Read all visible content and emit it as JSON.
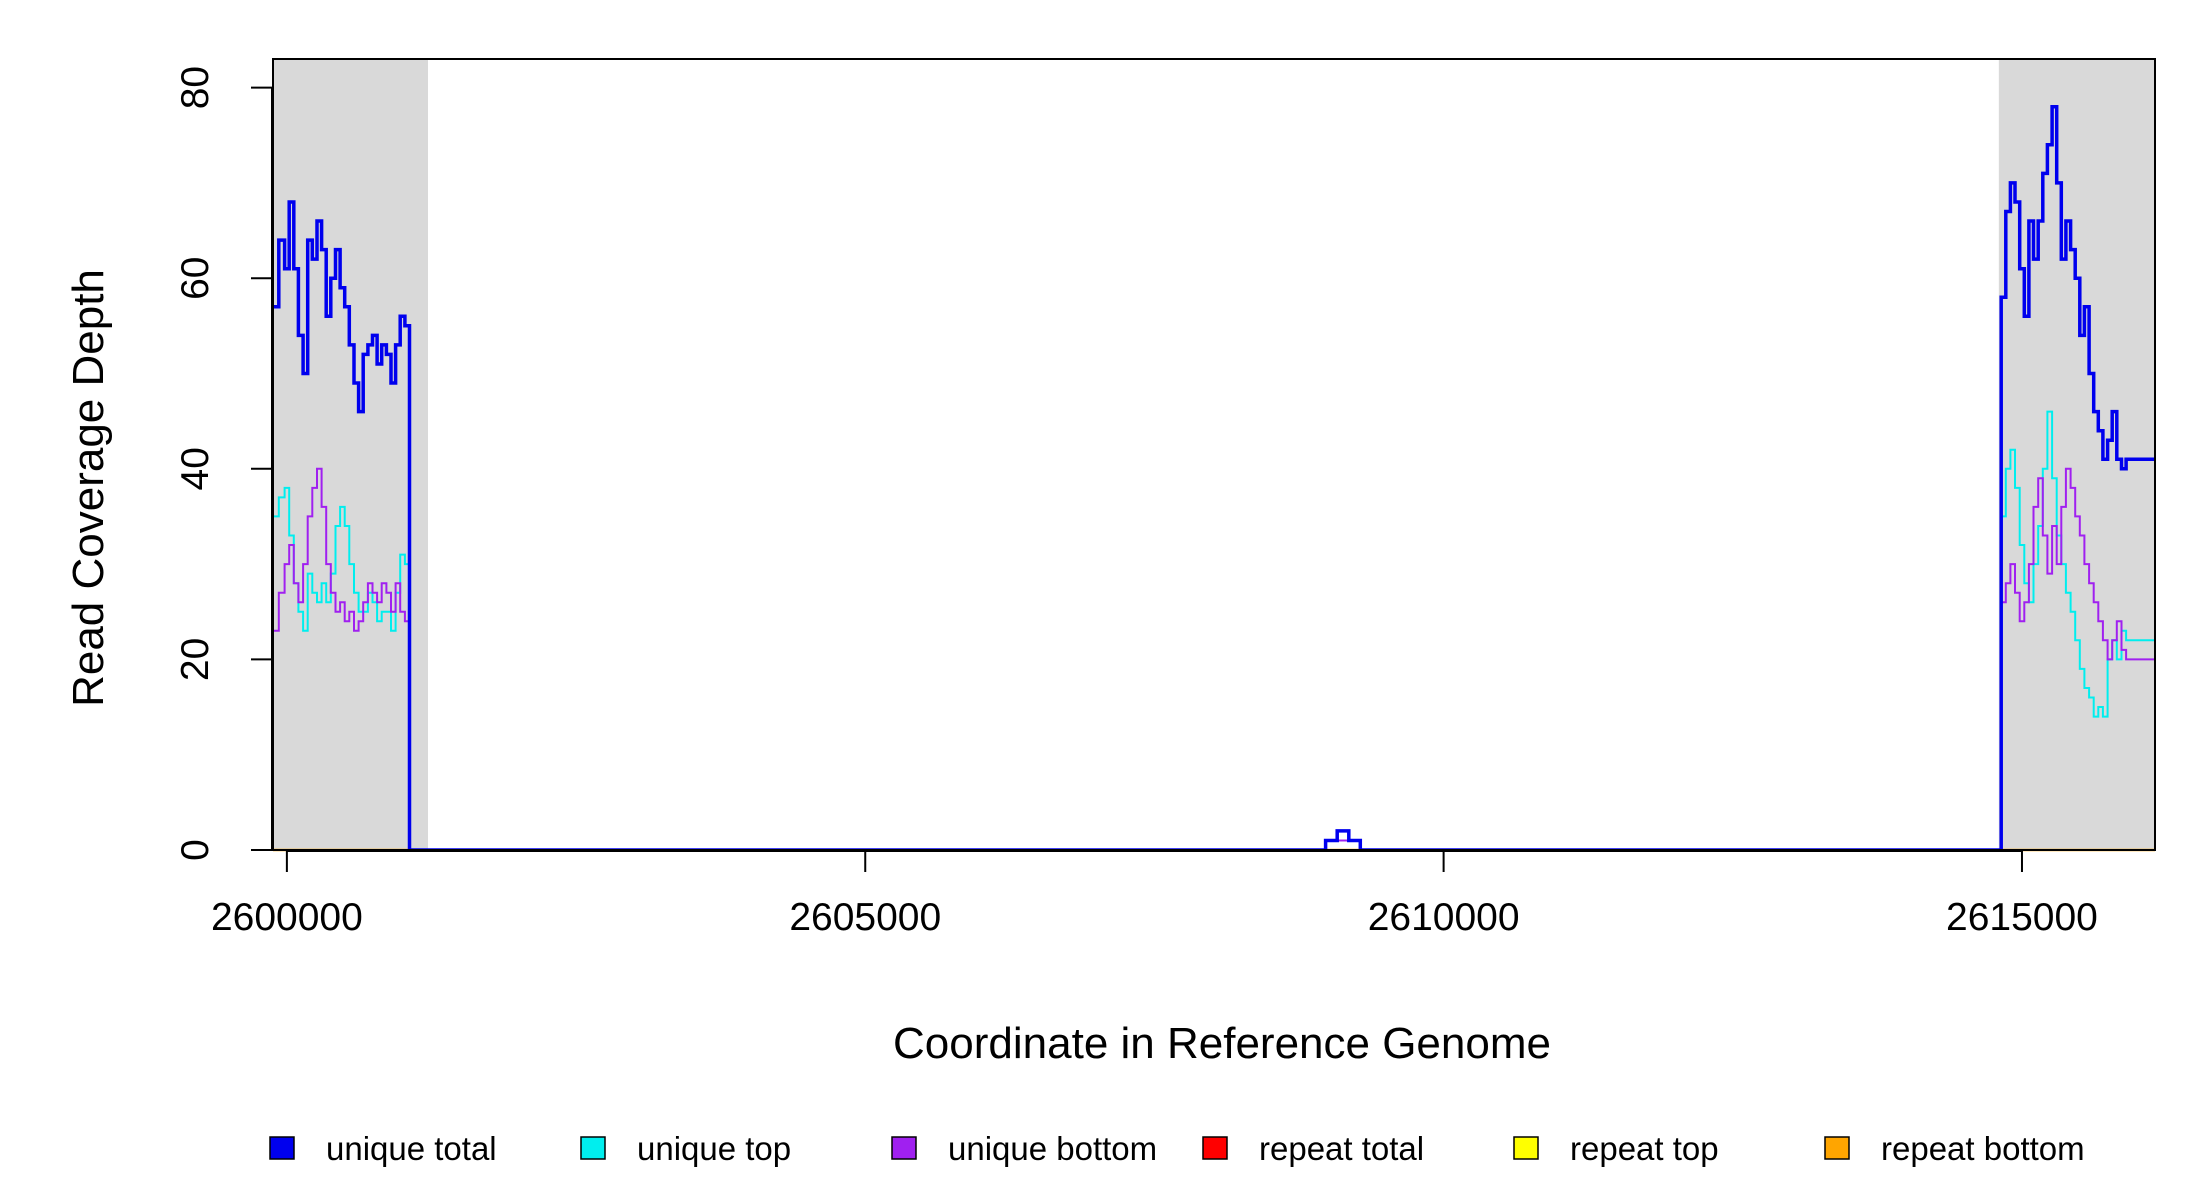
{
  "chart_data": {
    "type": "line",
    "xlabel": "Coordinate in Reference Genome",
    "ylabel": "Read Coverage Depth",
    "xlim": [
      2599880,
      2616150
    ],
    "ylim": [
      0,
      83
    ],
    "x_ticks": [
      2600000,
      2605000,
      2610000,
      2615000
    ],
    "x_tick_labels": [
      "2600000",
      "2605000",
      "2610000",
      "2615000"
    ],
    "y_ticks": [
      0,
      20,
      40,
      60,
      80
    ],
    "y_tick_labels": [
      "0",
      "20",
      "40",
      "60",
      "80"
    ],
    "shaded_regions": [
      [
        2599880,
        2601220
      ],
      [
        2614800,
        2616150
      ]
    ],
    "legend_position": "bottom",
    "series": [
      {
        "name": "unique total",
        "color": "#0000ee",
        "x": [
          2599880,
          2599930,
          2599980,
          2600020,
          2600060,
          2600100,
          2600140,
          2600180,
          2600220,
          2600260,
          2600300,
          2600340,
          2600380,
          2600420,
          2600460,
          2600500,
          2600540,
          2600580,
          2600620,
          2600660,
          2600700,
          2600740,
          2600780,
          2600820,
          2600860,
          2600900,
          2600940,
          2600980,
          2601020,
          2601060,
          2601100,
          2601140,
          2601180,
          2601210,
          2601230,
          2608900,
          2608980,
          2609080,
          2609180,
          2609280,
          2614800,
          2614820,
          2614860,
          2614900,
          2614940,
          2614980,
          2615020,
          2615060,
          2615100,
          2615140,
          2615180,
          2615220,
          2615260,
          2615300,
          2615340,
          2615380,
          2615420,
          2615460,
          2615500,
          2615540,
          2615580,
          2615620,
          2615660,
          2615700,
          2615740,
          2615780,
          2615820,
          2615860,
          2615900,
          2615940,
          2615980,
          2616020,
          2616060,
          2616100,
          2616150
        ],
        "y": [
          57,
          64,
          61,
          68,
          61,
          54,
          50,
          64,
          62,
          66,
          63,
          56,
          60,
          63,
          59,
          57,
          53,
          49,
          46,
          52,
          53,
          54,
          51,
          53,
          52,
          49,
          53,
          56,
          55,
          0,
          0,
          0,
          0,
          0,
          0,
          0,
          1,
          2,
          1,
          0,
          0,
          58,
          67,
          70,
          68,
          61,
          56,
          66,
          62,
          66,
          71,
          74,
          78,
          70,
          62,
          66,
          63,
          60,
          54,
          57,
          50,
          46,
          44,
          41,
          43,
          46,
          41,
          40,
          41,
          41,
          41,
          41,
          41,
          41,
          41
        ]
      },
      {
        "name": "unique top",
        "color": "#00eeee",
        "x": [
          2599880,
          2599930,
          2599980,
          2600020,
          2600060,
          2600100,
          2600140,
          2600180,
          2600220,
          2600260,
          2600300,
          2600340,
          2600380,
          2600420,
          2600460,
          2600500,
          2600540,
          2600580,
          2600620,
          2600660,
          2600700,
          2600740,
          2600780,
          2600820,
          2600860,
          2600900,
          2600940,
          2600980,
          2601020,
          2601060,
          2601100,
          2601140,
          2601180,
          2601210,
          2601230,
          2608900,
          2608980,
          2609080,
          2609180,
          2609280,
          2614800,
          2614820,
          2614860,
          2614900,
          2614940,
          2614980,
          2615020,
          2615060,
          2615100,
          2615140,
          2615180,
          2615220,
          2615260,
          2615300,
          2615340,
          2615380,
          2615420,
          2615460,
          2615500,
          2615540,
          2615580,
          2615620,
          2615660,
          2615700,
          2615740,
          2615780,
          2615820,
          2615860,
          2615900,
          2615940,
          2615980,
          2616020,
          2616060,
          2616100,
          2616150
        ],
        "y": [
          35,
          37,
          38,
          33,
          28,
          25,
          23,
          29,
          27,
          26,
          28,
          26,
          29,
          34,
          36,
          34,
          30,
          27,
          25,
          25,
          27,
          26,
          24,
          25,
          25,
          23,
          27,
          31,
          30,
          0,
          0,
          0,
          0,
          0,
          0,
          0,
          1,
          1,
          1,
          0,
          0,
          35,
          40,
          42,
          38,
          32,
          28,
          26,
          30,
          34,
          40,
          46,
          39,
          33,
          30,
          27,
          25,
          22,
          19,
          17,
          16,
          14,
          15,
          14,
          20,
          22,
          20,
          23,
          22,
          22,
          22,
          22,
          22,
          22,
          22
        ]
      },
      {
        "name": "unique bottom",
        "color": "#a020f0",
        "x": [
          2599880,
          2599930,
          2599980,
          2600020,
          2600060,
          2600100,
          2600140,
          2600180,
          2600220,
          2600260,
          2600300,
          2600340,
          2600380,
          2600420,
          2600460,
          2600500,
          2600540,
          2600580,
          2600620,
          2600660,
          2600700,
          2600740,
          2600780,
          2600820,
          2600860,
          2600900,
          2600940,
          2600980,
          2601020,
          2601060,
          2601100,
          2601140,
          2601180,
          2601210,
          2601230,
          2608900,
          2608980,
          2609080,
          2609180,
          2609280,
          2614800,
          2614820,
          2614860,
          2614900,
          2614940,
          2614980,
          2615020,
          2615060,
          2615100,
          2615140,
          2615180,
          2615220,
          2615260,
          2615300,
          2615340,
          2615380,
          2615420,
          2615460,
          2615500,
          2615540,
          2615580,
          2615620,
          2615660,
          2615700,
          2615740,
          2615780,
          2615820,
          2615860,
          2615900,
          2615940,
          2615980,
          2616020,
          2616060,
          2616100,
          2616150
        ],
        "y": [
          23,
          27,
          30,
          32,
          28,
          26,
          30,
          35,
          38,
          40,
          36,
          30,
          27,
          25,
          26,
          24,
          25,
          23,
          24,
          26,
          28,
          27,
          26,
          28,
          27,
          25,
          28,
          25,
          24,
          0,
          0,
          0,
          0,
          0,
          0,
          0,
          1,
          1,
          1,
          0,
          0,
          26,
          28,
          30,
          27,
          24,
          26,
          30,
          36,
          39,
          33,
          29,
          34,
          30,
          36,
          40,
          38,
          35,
          33,
          30,
          28,
          26,
          24,
          22,
          20,
          22,
          24,
          21,
          20,
          20,
          20,
          20,
          20,
          20,
          20
        ]
      },
      {
        "name": "repeat total",
        "color": "#ff0000",
        "x": [
          2599880,
          2608980,
          2609080,
          2609180,
          2616150
        ],
        "y": [
          0,
          0,
          0,
          0,
          0
        ]
      },
      {
        "name": "repeat top",
        "color": "#ffff00",
        "x": [
          2599880,
          2616150
        ],
        "y": [
          0,
          0
        ]
      },
      {
        "name": "repeat bottom",
        "color": "#ffa500",
        "x": [
          2599880,
          2616150
        ],
        "y": [
          0,
          0
        ]
      }
    ]
  }
}
